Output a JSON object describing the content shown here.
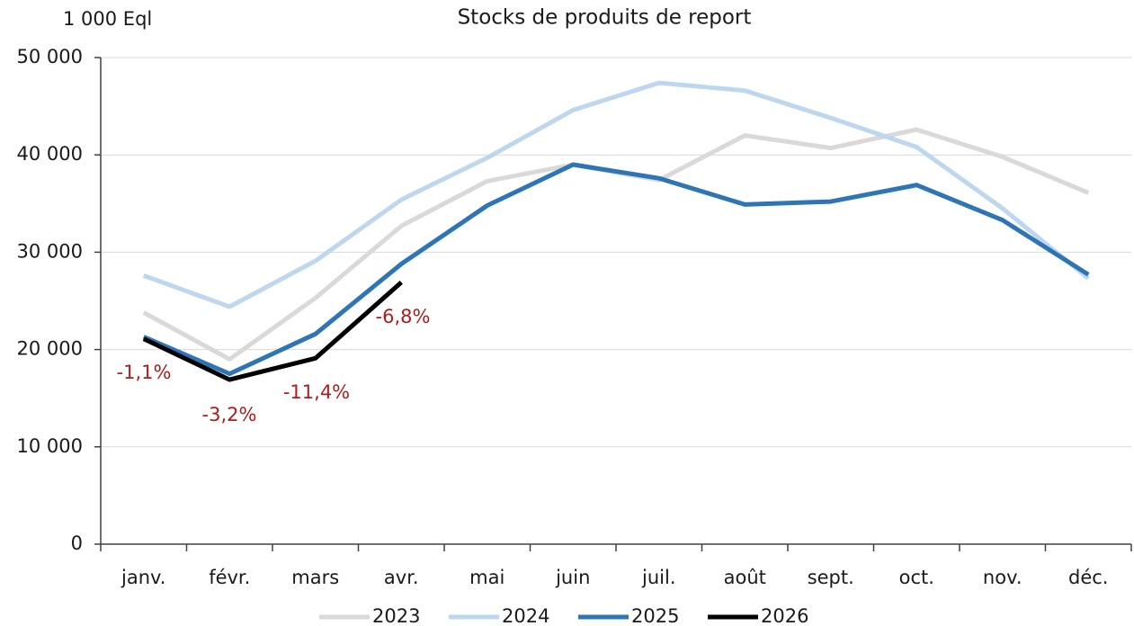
{
  "chart_data": {
    "type": "line",
    "title": "Stocks de produits de report",
    "y_label": "1 000 Eql",
    "categories": [
      "janv.",
      "févr.",
      "mars",
      "avr.",
      "mai",
      "juin",
      "juil.",
      "août",
      "sept.",
      "oct.",
      "nov.",
      "déc."
    ],
    "series": [
      {
        "name": "2023",
        "color": "#d9d9d9",
        "values": [
          23800,
          19000,
          25300,
          32700,
          37300,
          39000,
          37400,
          42000,
          40700,
          42600,
          39800,
          36100
        ]
      },
      {
        "name": "2024",
        "color": "#bdd7ee",
        "values": [
          27600,
          24400,
          29100,
          35400,
          39700,
          44600,
          47400,
          46600,
          43800,
          40800,
          34500,
          27300
        ]
      },
      {
        "name": "2025",
        "color": "#2e75b6",
        "values": [
          21300,
          17500,
          21600,
          28800,
          34800,
          39000,
          37600,
          34900,
          35200,
          36900,
          33300,
          27700
        ]
      },
      {
        "name": "2026",
        "color": "#000000",
        "values": [
          21100,
          16900,
          19100,
          26900,
          null,
          null,
          null,
          null,
          null,
          null,
          null,
          null
        ]
      }
    ],
    "annotations": [
      "-1,1%",
      "-3,2%",
      "-11,4%",
      "-6,8%"
    ],
    "annotation_color": "#b01c1c",
    "ylim": [
      0,
      50000
    ],
    "yticks": [
      0,
      {
        "value": 10000,
        "label": "10 000"
      },
      {
        "value": 20000,
        "label": "20 000"
      },
      {
        "value": 30000,
        "label": "30 000"
      },
      {
        "value": 40000,
        "label": "40 000"
      },
      {
        "value": 50000,
        "label": "50 000"
      }
    ],
    "grid": true,
    "legend": "bottom"
  }
}
